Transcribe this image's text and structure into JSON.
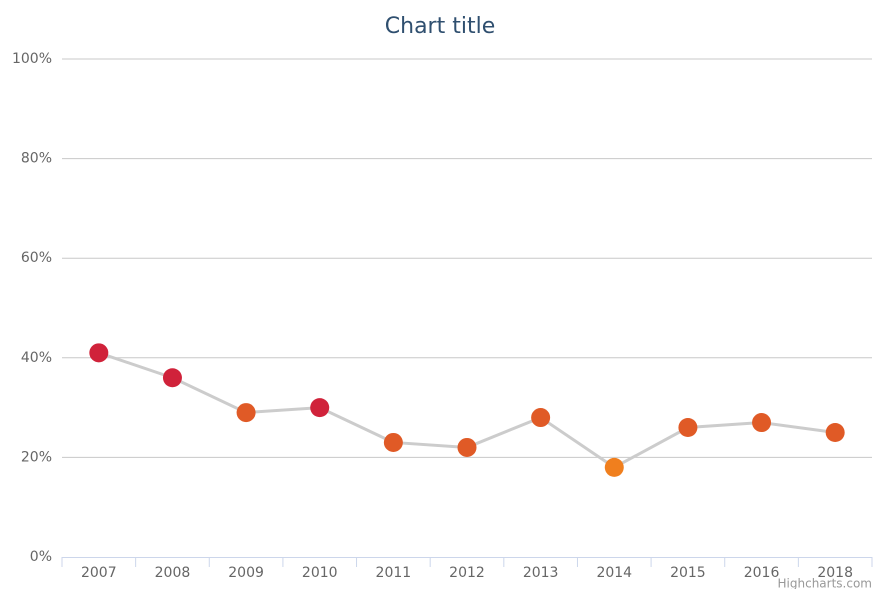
{
  "chart_data": {
    "type": "line",
    "title": "Chart title",
    "credits": "Highcharts.com",
    "categories": [
      "2007",
      "2008",
      "2009",
      "2010",
      "2011",
      "2012",
      "2013",
      "2014",
      "2015",
      "2016",
      "2018"
    ],
    "series": [
      {
        "color": "#cccccc",
        "values": [
          41,
          36,
          29,
          30,
          23,
          22,
          28,
          18,
          26,
          27,
          25
        ],
        "point_colors": [
          "#d0223a",
          "#d0223a",
          "#e05a26",
          "#d0223a",
          "#e05a26",
          "#e05a26",
          "#e05a26",
          "#f07f1e",
          "#e05a26",
          "#e05a26",
          "#e05a26"
        ]
      }
    ],
    "ylim": [
      0,
      100
    ],
    "yticks": [
      {
        "value": 0,
        "label": "0%"
      },
      {
        "value": 20,
        "label": "20%"
      },
      {
        "value": 40,
        "label": "40%"
      },
      {
        "value": 60,
        "label": "60%"
      },
      {
        "value": 80,
        "label": "80%"
      },
      {
        "value": 100,
        "label": "100%"
      }
    ],
    "grid": true
  }
}
